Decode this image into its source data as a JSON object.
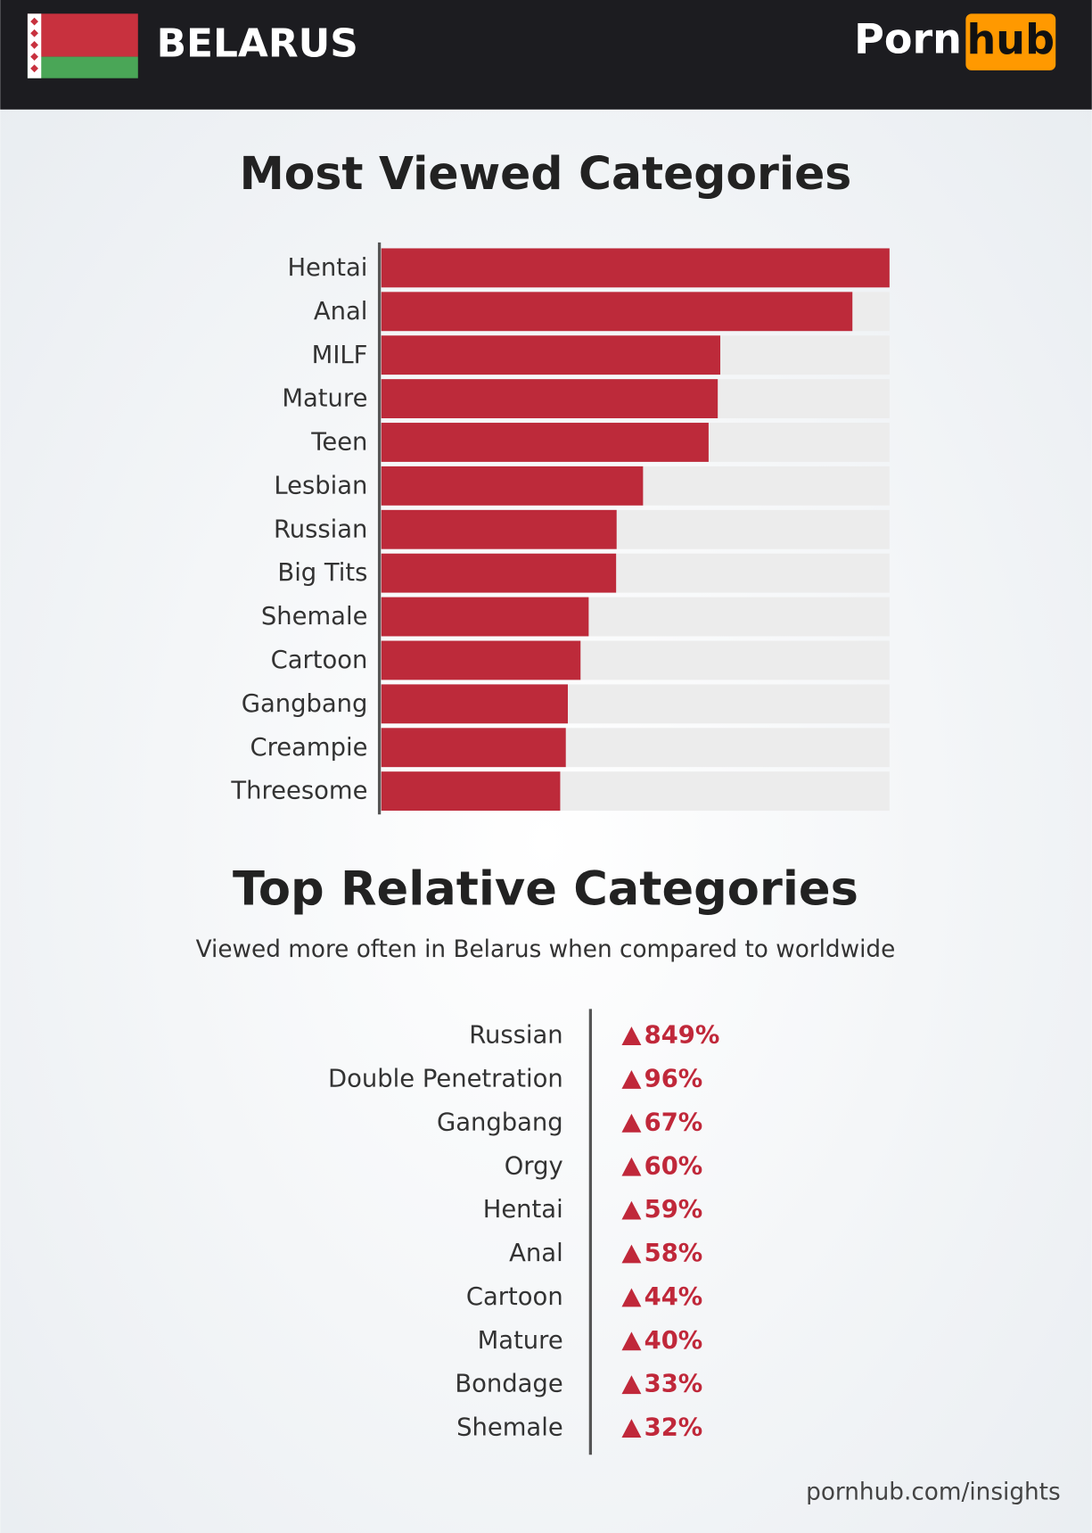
{
  "header": {
    "country": "BELARUS",
    "logo_left": "Porn",
    "logo_right": "hub"
  },
  "chart_data": [
    {
      "type": "hbar",
      "title": "Most Viewed Categories",
      "categories": [
        "Hentai",
        "Anal",
        "MILF",
        "Mature",
        "Teen",
        "Lesbian",
        "Russian",
        "Big Tits",
        "Shemale",
        "Cartoon",
        "Gangbang",
        "Creampie",
        "Threesome"
      ],
      "values": [
        100,
        92.7,
        66.7,
        66.2,
        64.4,
        51.5,
        46.3,
        46.2,
        40.8,
        39.2,
        36.7,
        36.3,
        35.2
      ],
      "xlim": [
        0,
        100
      ],
      "color": "#bd2a3a",
      "track_color": "#ececec"
    },
    {
      "type": "list",
      "title": "Top Relative Categories",
      "subtitle": "Viewed more often in Belarus when compared to worldwide",
      "categories": [
        "Russian",
        "Double Penetration",
        "Gangbang",
        "Orgy",
        "Hentai",
        "Anal",
        "Cartoon",
        "Mature",
        "Bondage",
        "Shemale"
      ],
      "values": [
        849,
        96,
        67,
        60,
        59,
        58,
        44,
        40,
        33,
        32
      ],
      "value_labels": [
        "849%",
        "96%",
        "67%",
        "60%",
        "59%",
        "58%",
        "44%",
        "40%",
        "33%",
        "32%"
      ],
      "color": "#c0283a"
    }
  ],
  "footer": "pornhub.com/insights"
}
